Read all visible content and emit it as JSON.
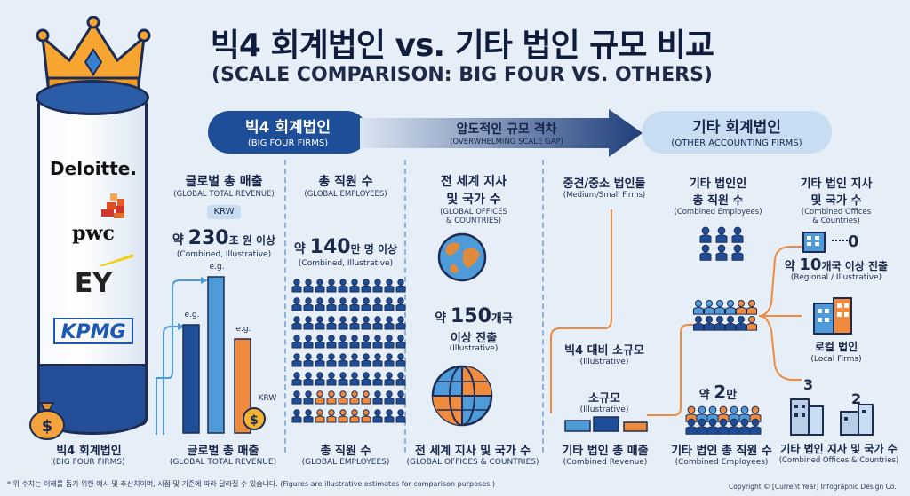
{
  "title": "빅4 회계법인 vs. 기타 법인 규모 비교",
  "subtitle": "(SCALE COMPARISON: BIG FOUR VS. OTHERS)",
  "banner_left": {
    "label": "빅4 회계법인",
    "sub": "(BIG FOUR FIRMS)"
  },
  "banner_center": {
    "label": "압도적인 규모 격차",
    "sub": "(OVERWHELMING SCALE GAP)"
  },
  "banner_right": {
    "label": "기타 회계법인",
    "sub": "(OTHER ACCOUNTING FIRMS)"
  },
  "logos": [
    "Deloitte.",
    "pwc",
    "EY",
    "KPMG"
  ],
  "revenue": {
    "head": "글로벌 총 매출",
    "head_sub": "(GLOBAL TOTAL REVENUE)",
    "currency": "KRW",
    "value_prefix": "약 ",
    "value_num": "230",
    "value_suffix": "조 원 이상",
    "note": "(Combined, Illustrative)",
    "eg1": "e.g.",
    "eg2": "e.g.",
    "eg3": "e.g.",
    "krw_bottom": "KRW"
  },
  "employees": {
    "head": "총 직원 수",
    "head_sub": "(GLOBAL EMPLOYEES)",
    "value_prefix": "약 ",
    "value_num": "140",
    "value_suffix": "만 명 이상",
    "note": "(Combined, Illustrative)"
  },
  "offices": {
    "head1": "전 세계 지사",
    "head2": "및 국가 수",
    "head_sub1": "(GLOBAL OFFICES",
    "head_sub2": "& COUNTRIES)",
    "value_prefix": "약 ",
    "value_num": "150",
    "value_suffix": "개국",
    "line2": "이상 진출",
    "note": "(Illustrative)"
  },
  "mid_firms": {
    "head": "중견/중소 법인들",
    "head_sub": "(Medium/Small Firms)",
    "compare": "빅4 대비 소규모",
    "compare_sub": "(Illustrative)",
    "small": "소규모",
    "small_sub": "(Illustrative)"
  },
  "other_emp": {
    "head1": "기타 법인인",
    "head2": "총 직원 수",
    "head_sub": "(Combined Employees)",
    "value_prefix": "약 ",
    "value_num": "2",
    "value_suffix": "만"
  },
  "other_offices": {
    "head1": "기타 법인 지사",
    "head2": "및 국가 수",
    "head_sub1": "(Combined Offices",
    "head_sub2": "& Countries)",
    "zero": "0",
    "reach_prefix": "약 ",
    "reach_num": "10",
    "reach_suffix": "개국 이상 진출",
    "reach_sub": "(Regional / Illustrative)",
    "local": "로컬 법인",
    "local_sub": "(Local Firms)",
    "num3": "3",
    "num2": "2"
  },
  "bottom": [
    {
      "label": "빅4 회계법인",
      "sub": "(BIG FOUR FIRMS)"
    },
    {
      "label": "글로벌 총 매출",
      "sub": "(GLOBAL TOTAL REVENUE)"
    },
    {
      "label": "총 직원 수",
      "sub": "(GLOBAL EMPLOYEES)"
    },
    {
      "label": "전 세계 지사 및 국가 수",
      "sub": "(GLOBAL OFFICES & COUNTRIES)"
    },
    {
      "label": "기타 법인 총 매출",
      "sub": "(Combined Revenue)"
    },
    {
      "label": "기타 법인 총 직원 수",
      "sub": "(Combined Employees)"
    },
    {
      "label": "기타 법인 지사 및 국가 수",
      "sub": "(Combined Offices & Countries)"
    }
  ],
  "footnote": "* 위 수치는 이해를 돕기 위한 예시 및 추산치이며, 시점 및 기준에 따라 달라질 수 있습니다. (Figures are illustrative estimates for comparison purposes.)",
  "copyright": "Copyright © [Current Year] Infographic Design Co.",
  "colors": {
    "navy": "#1f4e99",
    "orange": "#f08a3c",
    "light_blue": "#4f9ad8"
  }
}
